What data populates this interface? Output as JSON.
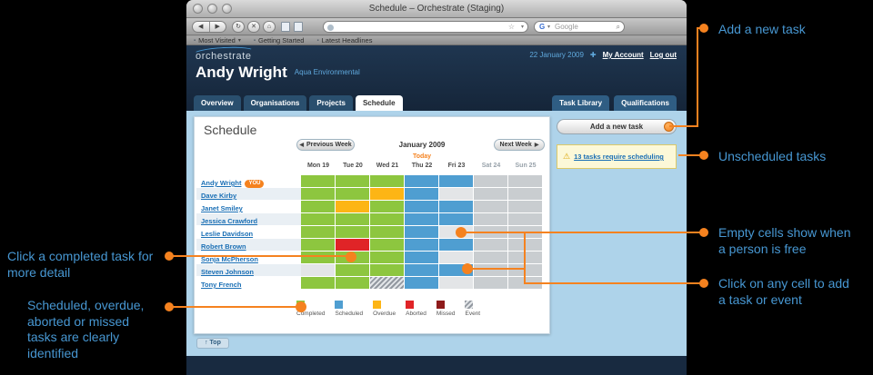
{
  "colors": {
    "accent_orange": "#f5821f",
    "annotation_blue": "#4797d2",
    "completed": "#8dc63f",
    "scheduled": "#4f9ed1",
    "overdue": "#fdb515",
    "aborted": "#e02427",
    "missed": "#8e1b1b"
  },
  "icons": {
    "back": "◀",
    "forward": "▶",
    "reload": "↻",
    "stop": "✕",
    "home": "⌂",
    "star": "☆",
    "dropdown": "▾",
    "magnifier": "⌕",
    "google_g": "G",
    "plus": "✚",
    "warning": "⚠",
    "prev_arrow": "◀",
    "next_arrow": "▶",
    "bookmark": "▪"
  },
  "annotations": {
    "add_task": "Add a new task",
    "unscheduled": "Unscheduled tasks",
    "empty_cells": "Empty cells show when a person is free",
    "click_cell": "Click on any cell to add a task or event",
    "completed_detail": "Click a completed task for more detail",
    "status_note": "Scheduled, overdue, aborted or missed tasks are clearly identified"
  },
  "browser": {
    "window_title": "Schedule – Orchestrate (Staging)",
    "bookmarks": [
      "Most Visited",
      "Getting Started",
      "Latest Headlines"
    ],
    "search_engine": "Google"
  },
  "header": {
    "logo": "orchestrate",
    "date": "22 January 2009",
    "account_link": "My Account",
    "logout_link": "Log out",
    "user_name": "Andy Wright",
    "organisation": "Aqua Environmental",
    "you_badge": "YOU"
  },
  "nav": {
    "tabs": [
      "Overview",
      "Organisations",
      "Projects",
      "Schedule"
    ],
    "active_tab": "Schedule",
    "right_tabs": [
      "Task Library",
      "Qualifications"
    ]
  },
  "sidebar": {
    "add_task_button": "Add a new task",
    "warning_link": "13 tasks require scheduling"
  },
  "schedule": {
    "heading": "Schedule",
    "prev_button": "Previous Week",
    "next_button": "Next Week",
    "month_label": "January 2009",
    "today_label": "Today",
    "top_button": "↑ Top",
    "days": [
      "Mon 19",
      "Tue 20",
      "Wed 21",
      "Thu 22",
      "Fri 23",
      "Sat 24",
      "Sun 25"
    ],
    "weekend_columns": [
      5,
      6
    ],
    "today_index": 3,
    "rows": [
      {
        "name": "Andy Wright",
        "you": true,
        "cells": [
          "completed",
          "completed",
          "completed",
          "scheduled",
          "scheduled",
          "empty",
          "empty"
        ]
      },
      {
        "name": "Dave Kirby",
        "you": false,
        "cells": [
          "completed",
          "completed",
          "overdue",
          "scheduled",
          "empty",
          "empty",
          "empty"
        ]
      },
      {
        "name": "Janet Smiley",
        "you": false,
        "cells": [
          "completed",
          "overdue",
          "completed",
          "scheduled",
          "scheduled",
          "empty",
          "empty"
        ]
      },
      {
        "name": "Jessica Crawford",
        "you": false,
        "cells": [
          "completed",
          "completed",
          "completed",
          "scheduled",
          "scheduled",
          "empty",
          "empty"
        ]
      },
      {
        "name": "Leslie Davidson",
        "you": false,
        "cells": [
          "completed",
          "completed",
          "completed",
          "scheduled",
          "empty",
          "empty",
          "empty"
        ]
      },
      {
        "name": "Robert Brown",
        "you": false,
        "cells": [
          "completed",
          "aborted",
          "completed",
          "scheduled",
          "scheduled",
          "empty",
          "empty"
        ]
      },
      {
        "name": "Sonja McPherson",
        "you": false,
        "cells": [
          "completed",
          "completed",
          "completed",
          "scheduled",
          "empty",
          "empty",
          "empty"
        ]
      },
      {
        "name": "Steven Johnson",
        "you": false,
        "cells": [
          "empty",
          "completed",
          "completed",
          "scheduled",
          "scheduled",
          "empty",
          "empty"
        ]
      },
      {
        "name": "Tony French",
        "you": false,
        "cells": [
          "completed",
          "completed",
          "event",
          "scheduled",
          "empty",
          "empty",
          "empty"
        ]
      }
    ],
    "legend": [
      {
        "label": "Completed",
        "type": "completed"
      },
      {
        "label": "Scheduled",
        "type": "scheduled"
      },
      {
        "label": "Overdue",
        "type": "overdue"
      },
      {
        "label": "Aborted",
        "type": "aborted"
      },
      {
        "label": "Missed",
        "type": "missed"
      },
      {
        "label": "Event",
        "type": "event"
      }
    ]
  }
}
